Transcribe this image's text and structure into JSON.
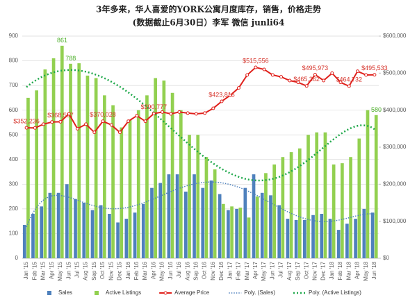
{
  "chart_data": {
    "type": "combo",
    "title": "3年多来，华人喜爱的YORK公寓月度库存，销售，价格走势",
    "subtitle": "(数据截止6月30日）李军 微信 junli64",
    "categories": [
      "Jan '15",
      "Feb '15",
      "Mar '15",
      "Apr '15",
      "May '15",
      "Jun '15",
      "Jul '15",
      "Aug '15",
      "Sep '15",
      "Oct '15",
      "Nov '15",
      "Dec '15",
      "Jan '16",
      "Feb '16",
      "Mar '16",
      "Apr '16",
      "May '16",
      "Jun '16",
      "Jul '16",
      "Aug '16",
      "Sep '16",
      "Oct '16",
      "Nov '16",
      "Dec '16",
      "Jan '17",
      "Feb '17",
      "Mar '17",
      "Apr '17",
      "May '17",
      "Jun '17",
      "Jul '17",
      "Aug '17",
      "Sep '17",
      "Oct '17",
      "Nov '17",
      "Dec '17",
      "Jan '18",
      "Feb '18",
      "Mar '18",
      "Apr '18",
      "May '18",
      "Jun '18"
    ],
    "series": [
      {
        "name": "Sales",
        "type": "bar",
        "color": "#4f81bd",
        "values": [
          135,
          180,
          210,
          265,
          265,
          300,
          240,
          225,
          195,
          215,
          180,
          145,
          160,
          185,
          220,
          285,
          305,
          340,
          340,
          270,
          340,
          285,
          315,
          260,
          195,
          200,
          285,
          340,
          265,
          255,
          215,
          160,
          155,
          155,
          175,
          180,
          160,
          115,
          140,
          160,
          200,
          185
        ]
      },
      {
        "name": "Active Listings",
        "type": "bar",
        "color": "#92d050",
        "values": [
          650,
          680,
          765,
          810,
          861,
          788,
          790,
          740,
          730,
          660,
          620,
          530,
          560,
          600,
          660,
          730,
          720,
          670,
          600,
          500,
          500,
          410,
          360,
          220,
          210,
          205,
          165,
          250,
          345,
          380,
          410,
          430,
          445,
          500,
          510,
          510,
          380,
          385,
          410,
          485,
          600,
          580
        ],
        "value_labels": [
          null,
          null,
          null,
          null,
          "861",
          "788",
          null,
          null,
          null,
          null,
          null,
          null,
          null,
          null,
          null,
          null,
          null,
          null,
          null,
          null,
          null,
          null,
          null,
          null,
          null,
          null,
          null,
          null,
          null,
          null,
          null,
          null,
          null,
          null,
          null,
          null,
          null,
          null,
          null,
          null,
          null,
          "580"
        ]
      },
      {
        "name": "Average Price",
        "type": "line",
        "axis": "y2",
        "color": "#e0201b",
        "values": [
          352236,
          352000,
          362000,
          368000,
          368597,
          390000,
          350000,
          362000,
          340000,
          370028,
          360000,
          340000,
          370000,
          385000,
          370000,
          390777,
          395000,
          390000,
          395000,
          392000,
          390000,
          392000,
          405000,
          423816,
          440000,
          460000,
          495000,
          515556,
          510000,
          495000,
          490000,
          480000,
          475000,
          465362,
          495973,
          480000,
          500000,
          475000,
          464732,
          505000,
          495000,
          495533
        ],
        "value_labels": [
          "$352,236",
          null,
          null,
          null,
          "$368,597",
          null,
          null,
          null,
          null,
          "$370,028",
          null,
          null,
          null,
          null,
          null,
          "$390,777",
          null,
          null,
          null,
          null,
          null,
          null,
          null,
          "$423,816",
          null,
          null,
          null,
          "$515,556",
          null,
          null,
          null,
          null,
          null,
          "$465,362",
          "$495,973",
          null,
          null,
          null,
          "$464,732",
          null,
          null,
          "$495,533"
        ]
      }
    ],
    "trendlines": [
      {
        "name": "Poly. (Sales)",
        "series": "Sales",
        "color": "#4f81bd",
        "order": 6
      },
      {
        "name": "Poly. (Active Listings)",
        "series": "Active Listings",
        "color": "#1ea84a",
        "order": 6
      }
    ],
    "ylim": [
      0,
      900
    ],
    "yticks": [
      0,
      100,
      200,
      300,
      400,
      500,
      600,
      700,
      800,
      900
    ],
    "y2lim": [
      0,
      600000
    ],
    "y2ticks": [
      {
        "value": 0,
        "label": "$0"
      },
      {
        "value": 100000,
        "label": "$100,000"
      },
      {
        "value": 200000,
        "label": "$200,000"
      },
      {
        "value": 300000,
        "label": "$300,000"
      },
      {
        "value": 400000,
        "label": "$400,000"
      },
      {
        "value": 500000,
        "label": "$500,000"
      },
      {
        "value": 600000,
        "label": "$600,000"
      }
    ],
    "grid": true
  }
}
